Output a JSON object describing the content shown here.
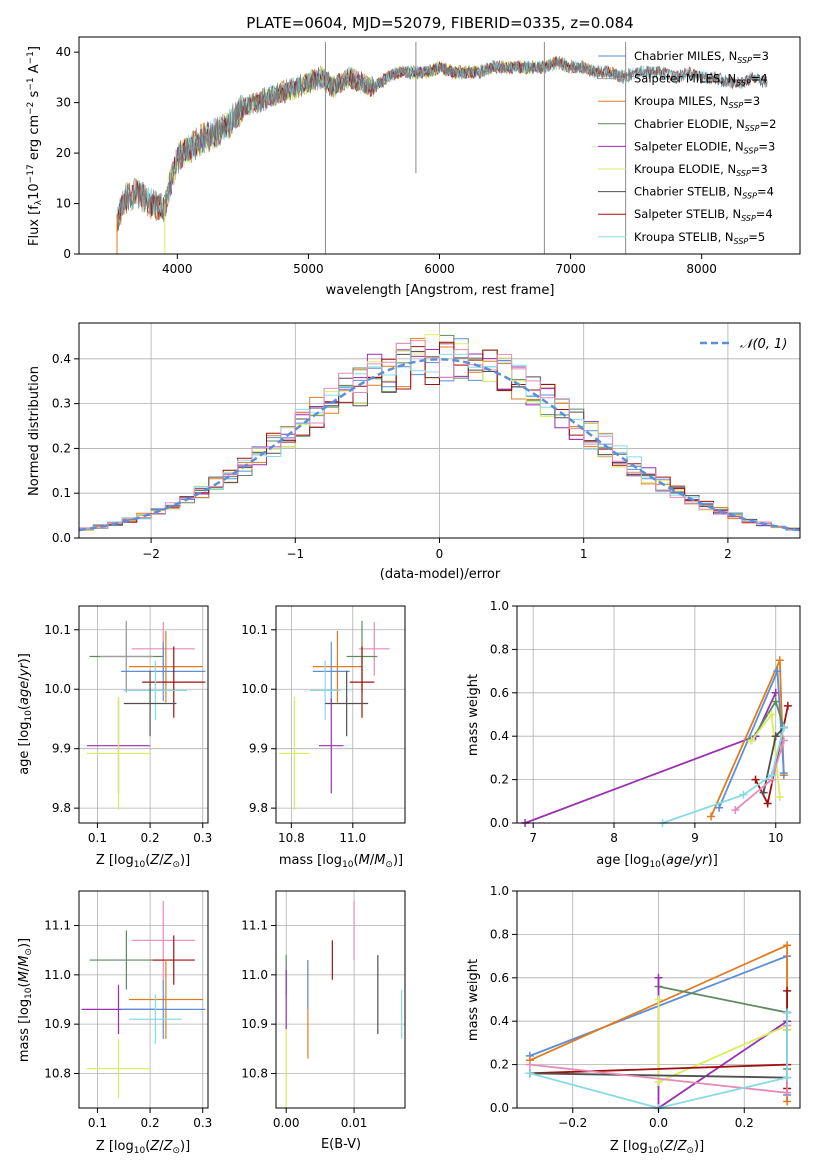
{
  "figure": {
    "title": "PLATE=0604, MJD=52079, FIBERID=0335, z=0.084"
  },
  "colors": {
    "chabrier_miles": "#5b8fd8",
    "salpeter_miles": "#a0a0a0",
    "kroupa_miles": "#e07b20",
    "chabrier_elodie": "#5f8a5f",
    "salpeter_elodie": "#9a2fb0",
    "kroupa_elodie": "#d8ee60",
    "chabrier_stelib": "#505050",
    "salpeter_stelib": "#a01010",
    "kroupa_stelib": "#86dbe6",
    "pink": "#e88ab8",
    "normal_curve": "#5b8fd8"
  },
  "chart_data": [
    {
      "id": "spectrum",
      "type": "line",
      "title": "PLATE=0604, MJD=52079, FIBERID=0335, z=0.084",
      "xlabel": "wavelength [Angstrom, rest frame]",
      "ylabel": "Flux [f_λ10^-17 erg cm^-2 s^-1 A^-1]",
      "xlim": [
        3250,
        8750
      ],
      "ylim": [
        0,
        43
      ],
      "xticks": [
        4000,
        5000,
        6000,
        7000,
        8000
      ],
      "yticks": [
        0,
        10,
        20,
        30,
        40
      ],
      "grid": false,
      "legend_position": "top-right",
      "observed_anchors": {
        "x": [
          3540,
          3600,
          3700,
          3800,
          3900,
          3950,
          4000,
          4100,
          4200,
          4300,
          4400,
          4500,
          4600,
          4700,
          4800,
          4900,
          5000,
          5100,
          5200,
          5300,
          5400,
          5500,
          5600,
          5700,
          5800,
          5900,
          6000,
          6100,
          6200,
          6300,
          6400,
          6500,
          6600,
          6700,
          6800,
          6900,
          7000,
          7100,
          7200,
          7300,
          7400,
          7500,
          7600,
          7700,
          7800,
          7900,
          8000,
          8100,
          8200,
          8300,
          8400,
          8500
        ],
        "y": [
          7,
          11,
          12,
          10,
          9,
          14,
          19,
          21,
          23,
          24,
          26,
          29,
          30,
          31,
          32,
          33,
          34,
          35,
          33,
          35,
          34,
          33,
          35,
          36,
          36,
          36,
          37,
          36,
          36,
          36,
          37,
          37,
          37,
          37,
          37,
          38,
          37,
          37,
          36,
          36,
          35,
          36,
          36,
          36,
          35,
          36,
          35,
          35,
          34,
          34,
          35,
          34
        ]
      },
      "series_labels": [
        {
          "text": "Chabrier MILES, N",
          "n": "3",
          "color_key": "chabrier_miles"
        },
        {
          "text": "Salpeter MILES, N",
          "n": "4",
          "color_key": "salpeter_miles"
        },
        {
          "text": "Kroupa MILES, N",
          "n": "3",
          "color_key": "kroupa_miles"
        },
        {
          "text": "Chabrier ELODIE, N",
          "n": "2",
          "color_key": "chabrier_elodie"
        },
        {
          "text": "Salpeter ELODIE, N",
          "n": "3",
          "color_key": "salpeter_elodie"
        },
        {
          "text": "Kroupa ELODIE, N",
          "n": "3",
          "color_key": "kroupa_elodie"
        },
        {
          "text": "Chabrier STELIB, N",
          "n": "4",
          "color_key": "chabrier_stelib"
        },
        {
          "text": "Salpeter STELIB, N",
          "n": "4",
          "color_key": "salpeter_stelib"
        },
        {
          "text": "Kroupa STELIB, N",
          "n": "5",
          "color_key": "kroupa_stelib"
        }
      ],
      "legend_subscript": "SSP",
      "model_ranges": {
        "chabrier_miles": [
          3540,
          7400
        ],
        "salpeter_miles": [
          3540,
          7400
        ],
        "kroupa_miles": [
          3540,
          7400
        ],
        "chabrier_elodie": [
          3900,
          6800
        ],
        "salpeter_elodie": [
          3900,
          6800
        ],
        "kroupa_elodie": [
          3900,
          6800
        ],
        "chabrier_stelib": [
          3540,
          8500
        ],
        "salpeter_stelib": [
          3540,
          8500
        ],
        "kroupa_stelib": [
          3540,
          8500
        ]
      }
    },
    {
      "id": "residuals",
      "type": "line",
      "xlabel": "(data-model)/error",
      "ylabel": "Normed distribution",
      "xlim": [
        -2.5,
        2.5
      ],
      "ylim": [
        0,
        0.48
      ],
      "xticks": [
        -2,
        -1,
        0,
        1,
        2
      ],
      "yticks": [
        0.0,
        0.1,
        0.2,
        0.3,
        0.4
      ],
      "grid": true,
      "legend_position": "top-right",
      "legend_label": "𝒩(0, 1)",
      "bin_width": 0.1
    },
    {
      "id": "age_vs_z",
      "type": "scatter",
      "xlabel": "Z [log10(Z/Z⊙)]",
      "ylabel": "age  [log10(age/yr)]",
      "xlim": [
        0.065,
        0.31
      ],
      "ylim": [
        9.775,
        10.14
      ],
      "xticks": [
        0.1,
        0.2,
        0.3
      ],
      "xticklabels": [
        "0.1",
        "0.2",
        "0.3"
      ],
      "yticks": [
        9.8,
        9.9,
        10.0,
        10.1
      ],
      "yticklabels": [
        "9.8",
        "9.9",
        "10.0",
        "10.1"
      ],
      "grid": true,
      "points": [
        {
          "color": "chabrier_elodie",
          "x": 0.155,
          "xerr": 0.07,
          "y": 10.055,
          "yerr": 0.06
        },
        {
          "color": "salpeter_miles",
          "x": 0.155,
          "xerr": 0.05,
          "y": 10.055,
          "yerr": 0.06
        },
        {
          "color": "pink",
          "x": 0.225,
          "xerr": 0.06,
          "y": 10.068,
          "yerr": 0.045
        },
        {
          "color": "kroupa_miles",
          "x": 0.23,
          "xerr": 0.07,
          "y": 10.038,
          "yerr": 0.06
        },
        {
          "color": "chabrier_miles",
          "x": 0.225,
          "xerr": 0.08,
          "y": 10.03,
          "yerr": 0.05
        },
        {
          "color": "salpeter_stelib",
          "x": 0.245,
          "xerr": 0.06,
          "y": 10.012,
          "yerr": 0.06
        },
        {
          "color": "kroupa_stelib",
          "x": 0.21,
          "xerr": 0.06,
          "y": 9.998,
          "yerr": 0.05
        },
        {
          "color": "chabrier_stelib",
          "x": 0.2,
          "xerr": 0.05,
          "y": 9.976,
          "yerr": 0.055
        },
        {
          "color": "salpeter_elodie",
          "x": 0.14,
          "xerr": 0.06,
          "y": 9.905,
          "yerr": 0.08
        },
        {
          "color": "kroupa_elodie",
          "x": 0.14,
          "xerr": 0.06,
          "y": 9.892,
          "yerr": 0.095
        }
      ]
    },
    {
      "id": "age_vs_mass",
      "type": "scatter",
      "xlabel": "mass [log10(M/M⊙)]",
      "xlim": [
        10.75,
        11.17
      ],
      "ylim": [
        9.775,
        10.14
      ],
      "xticks": [
        10.8,
        11.0
      ],
      "xticklabels": [
        "10.8",
        "11.0"
      ],
      "yticks": [
        9.8,
        9.9,
        10.0,
        10.1
      ],
      "yticklabels": [
        "9.8",
        "9.9",
        "10.0",
        "10.1"
      ],
      "grid": true,
      "points": [
        {
          "color": "pink",
          "x": 11.07,
          "xerr": 0.05,
          "y": 10.068,
          "yerr": 0.045
        },
        {
          "color": "chabrier_elodie",
          "x": 11.03,
          "xerr": 0.05,
          "y": 10.055,
          "yerr": 0.06
        },
        {
          "color": "kroupa_miles",
          "x": 10.95,
          "xerr": 0.08,
          "y": 10.038,
          "yerr": 0.06
        },
        {
          "color": "chabrier_miles",
          "x": 10.93,
          "xerr": 0.06,
          "y": 10.03,
          "yerr": 0.05
        },
        {
          "color": "salpeter_stelib",
          "x": 11.03,
          "xerr": 0.04,
          "y": 10.012,
          "yerr": 0.06
        },
        {
          "color": "kroupa_stelib",
          "x": 10.91,
          "xerr": 0.05,
          "y": 9.998,
          "yerr": 0.05
        },
        {
          "color": "chabrier_stelib",
          "x": 10.98,
          "xerr": 0.07,
          "y": 9.976,
          "yerr": 0.055
        },
        {
          "color": "salpeter_elodie",
          "x": 10.93,
          "xerr": 0.04,
          "y": 9.905,
          "yerr": 0.08
        },
        {
          "color": "kroupa_elodie",
          "x": 10.81,
          "xerr": 0.05,
          "y": 9.892,
          "yerr": 0.095
        }
      ]
    },
    {
      "id": "weight_vs_age",
      "type": "line",
      "xlabel": "age  [log10(age/yr)]",
      "ylabel": "mass weight",
      "xlim": [
        6.8,
        10.3
      ],
      "ylim": [
        0,
        1.0
      ],
      "xticks": [
        7,
        8,
        9,
        10
      ],
      "xticklabels": [
        "7",
        "8",
        "9",
        "10"
      ],
      "yticks": [
        0.0,
        0.2,
        0.4,
        0.6,
        0.8,
        1.0
      ],
      "yticklabels": [
        "0.0",
        "0.2",
        "0.4",
        "0.6",
        "0.8",
        "1.0"
      ],
      "grid": true,
      "series": [
        {
          "color": "salpeter_elodie",
          "x": [
            6.9,
            9.75,
            10.0
          ],
          "y": [
            0.0,
            0.4,
            0.6
          ]
        },
        {
          "color": "kroupa_miles",
          "x": [
            9.2,
            10.05,
            10.1
          ],
          "y": [
            0.03,
            0.75,
            0.22
          ]
        },
        {
          "color": "chabrier_miles",
          "x": [
            9.3,
            10.02,
            10.1
          ],
          "y": [
            0.07,
            0.7,
            0.23
          ]
        },
        {
          "color": "chabrier_elodie",
          "x": [
            9.7,
            10.0,
            10.1
          ],
          "y": [
            0.38,
            0.56,
            0.44
          ]
        },
        {
          "color": "kroupa_elodie",
          "x": [
            9.7,
            9.95,
            10.05
          ],
          "y": [
            0.38,
            0.5,
            0.12
          ]
        },
        {
          "color": "salpeter_stelib",
          "x": [
            9.75,
            9.9,
            10.15
          ],
          "y": [
            0.2,
            0.09,
            0.54
          ]
        },
        {
          "color": "chabrier_stelib",
          "x": [
            9.85,
            10.0,
            10.1
          ],
          "y": [
            0.14,
            0.4,
            0.44
          ]
        },
        {
          "color": "pink",
          "x": [
            9.5,
            9.95,
            10.1
          ],
          "y": [
            0.06,
            0.2,
            0.38
          ]
        },
        {
          "color": "kroupa_stelib",
          "x": [
            8.6,
            9.6,
            9.95,
            10.1
          ],
          "y": [
            0.0,
            0.13,
            0.22,
            0.44
          ]
        }
      ]
    },
    {
      "id": "mass_vs_z",
      "type": "scatter",
      "xlabel": "Z [log10(Z/Z⊙)]",
      "ylabel": "mass [log10(M/M⊙)]",
      "xlim": [
        0.065,
        0.31
      ],
      "ylim": [
        10.73,
        11.17
      ],
      "xticks": [
        0.1,
        0.2,
        0.3
      ],
      "xticklabels": [
        "0.1",
        "0.2",
        "0.3"
      ],
      "yticks": [
        10.8,
        10.9,
        11.0,
        11.1
      ],
      "yticklabels": [
        "10.8",
        "10.9",
        "11.0",
        "11.1"
      ],
      "grid": true,
      "points": [
        {
          "color": "pink",
          "x": 0.225,
          "xerr": 0.06,
          "y": 11.07,
          "yerr": 0.08
        },
        {
          "color": "chabrier_elodie",
          "x": 0.155,
          "xerr": 0.07,
          "y": 11.03,
          "yerr": 0.06
        },
        {
          "color": "salpeter_stelib",
          "x": 0.245,
          "xerr": 0.04,
          "y": 11.03,
          "yerr": 0.05
        },
        {
          "color": "kroupa_miles",
          "x": 0.23,
          "xerr": 0.07,
          "y": 10.95,
          "yerr": 0.08
        },
        {
          "color": "salpeter_elodie",
          "x": 0.14,
          "xerr": 0.07,
          "y": 10.93,
          "yerr": 0.05
        },
        {
          "color": "chabrier_miles",
          "x": 0.225,
          "xerr": 0.08,
          "y": 10.93,
          "yerr": 0.06
        },
        {
          "color": "kroupa_stelib",
          "x": 0.21,
          "xerr": 0.05,
          "y": 10.91,
          "yerr": 0.05
        },
        {
          "color": "kroupa_elodie",
          "x": 0.14,
          "xerr": 0.06,
          "y": 10.81,
          "yerr": 0.06
        }
      ]
    },
    {
      "id": "mass_vs_ebv",
      "type": "scatter",
      "xlabel": "E(B-V)",
      "xlim": [
        -0.0015,
        0.0175
      ],
      "ylim": [
        10.73,
        11.17
      ],
      "xticks": [
        0.0,
        0.01
      ],
      "xticklabels": [
        "0.00",
        "0.01"
      ],
      "yticks": [
        10.8,
        10.9,
        11.0,
        11.1
      ],
      "yticklabels": [
        "10.8",
        "10.9",
        "11.0",
        "11.1"
      ],
      "grid": true,
      "points": [
        {
          "color": "chabrier_elodie",
          "x": 0.0,
          "y": 11.0,
          "yerr": 0.04
        },
        {
          "color": "salpeter_elodie",
          "x": 0.0,
          "y": 10.95,
          "yerr": 0.06
        },
        {
          "color": "kroupa_elodie",
          "x": 0.0,
          "y": 10.81,
          "yerr": 0.08
        },
        {
          "color": "kroupa_miles",
          "x": 0.0032,
          "y": 10.93,
          "yerr": 0.1
        },
        {
          "color": "chabrier_miles",
          "x": 0.0032,
          "y": 10.98,
          "yerr": 0.05
        },
        {
          "color": "salpeter_stelib",
          "x": 0.0068,
          "y": 11.03,
          "yerr": 0.04
        },
        {
          "color": "pink",
          "x": 0.01,
          "y": 11.09,
          "yerr": 0.06
        },
        {
          "color": "chabrier_stelib",
          "x": 0.0135,
          "y": 10.96,
          "yerr": 0.08
        },
        {
          "color": "kroupa_stelib",
          "x": 0.017,
          "y": 10.92,
          "yerr": 0.05
        }
      ]
    },
    {
      "id": "weight_vs_z",
      "type": "line",
      "xlabel": "Z [log10(Z/Z⊙)]",
      "ylabel": "mass weight",
      "xlim": [
        -0.33,
        0.33
      ],
      "ylim": [
        0,
        1.0
      ],
      "xticks": [
        -0.2,
        0.0,
        0.2
      ],
      "xticklabels": [
        "−0.2",
        "0.0",
        "0.2"
      ],
      "yticks": [
        0.0,
        0.2,
        0.4,
        0.6,
        0.8,
        1.0
      ],
      "yticklabels": [
        "0.0",
        "0.2",
        "0.4",
        "0.6",
        "0.8",
        "1.0"
      ],
      "grid": true,
      "series": [
        {
          "color": "chabrier_miles",
          "x": [
            -0.3,
            0.3,
            0.3
          ],
          "y": [
            0.24,
            0.7,
            0.06
          ]
        },
        {
          "color": "kroupa_miles",
          "x": [
            -0.3,
            0.3,
            0.3
          ],
          "y": [
            0.22,
            0.75,
            0.03
          ]
        },
        {
          "color": "chabrier_elodie",
          "x": [
            0.0,
            0.3,
            0.3
          ],
          "y": [
            0.56,
            0.44,
            0.18
          ]
        },
        {
          "color": "salpeter_elodie",
          "x": [
            0.0,
            0.0,
            0.3,
            0.3
          ],
          "y": [
            0.6,
            0.0,
            0.4,
            0.36
          ]
        },
        {
          "color": "kroupa_elodie",
          "x": [
            0.0,
            0.0,
            0.3,
            0.3
          ],
          "y": [
            0.5,
            0.12,
            0.38,
            0.36
          ]
        },
        {
          "color": "salpeter_stelib",
          "x": [
            -0.3,
            0.3,
            0.3,
            0.3
          ],
          "y": [
            0.16,
            0.2,
            0.54,
            0.09
          ]
        },
        {
          "color": "chabrier_stelib",
          "x": [
            -0.3,
            0.3,
            0.3
          ],
          "y": [
            0.16,
            0.14,
            0.44
          ]
        },
        {
          "color": "pink",
          "x": [
            -0.3,
            0.3,
            0.3
          ],
          "y": [
            0.2,
            0.07,
            0.38
          ]
        },
        {
          "color": "kroupa_stelib",
          "x": [
            -0.3,
            0.0,
            0.3,
            0.3
          ],
          "y": [
            0.16,
            0.0,
            0.14,
            0.44
          ]
        }
      ]
    }
  ]
}
